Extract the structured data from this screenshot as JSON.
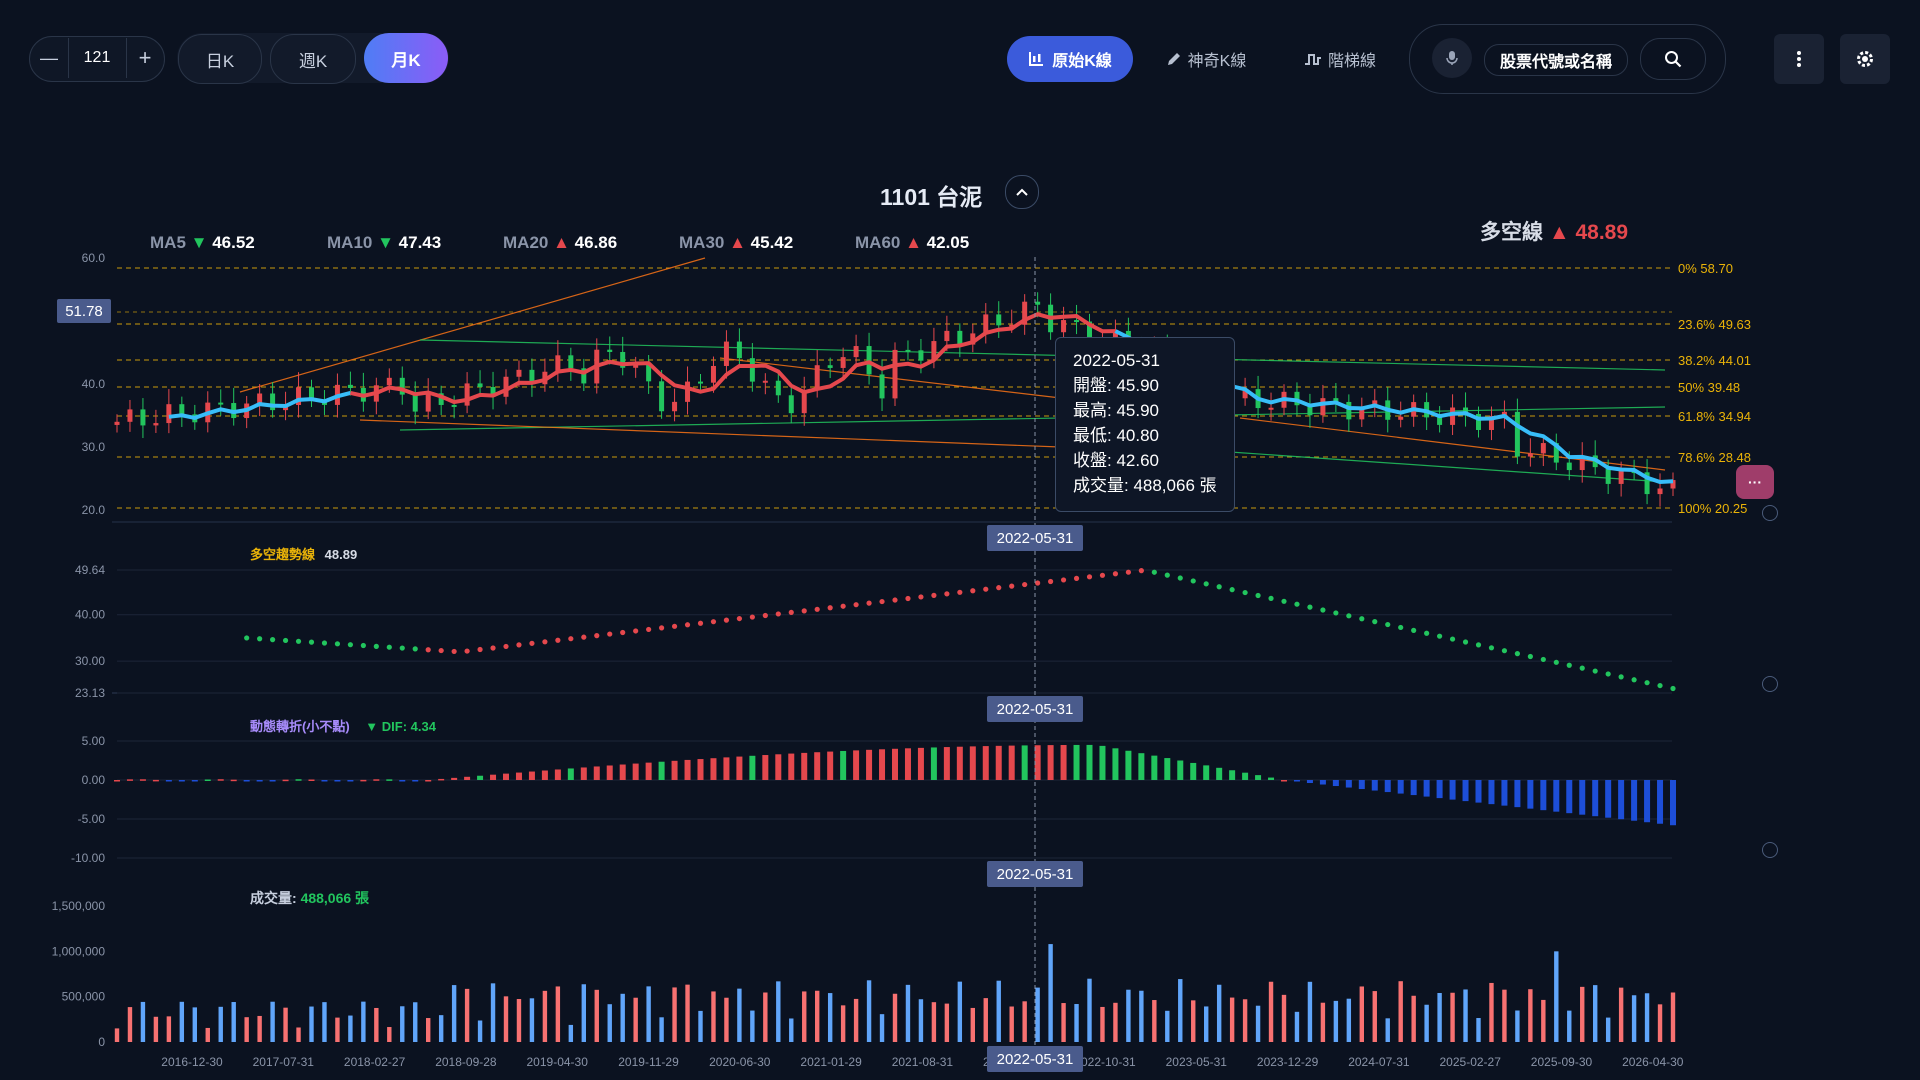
{
  "toolbar": {
    "count_value": "121",
    "minus_label": "—",
    "plus_label": "+",
    "period_tabs": [
      {
        "label": "日K",
        "active": false
      },
      {
        "label": "週K",
        "active": false
      },
      {
        "label": "月K",
        "active": true
      }
    ],
    "chart_modes": [
      {
        "label": "原始K線",
        "icon": "candlestick-chart-icon",
        "active": true
      },
      {
        "label": "神奇K線",
        "icon": "pencil-icon",
        "active": false
      },
      {
        "label": "階梯線",
        "icon": "step-line-icon",
        "active": false
      }
    ],
    "search_placeholder": "股票代號或名稱",
    "mic_icon": "microphone-icon",
    "search_icon": "search-icon",
    "more_icon": "more-vertical-icon",
    "settings_icon": "gear-icon"
  },
  "stock": {
    "title": "1101 台泥",
    "collapse_icon": "chevron-up-icon"
  },
  "ma": [
    {
      "label": "MA5",
      "dir": "down",
      "value": "46.52"
    },
    {
      "label": "MA10",
      "dir": "down",
      "value": "47.43"
    },
    {
      "label": "MA20",
      "dir": "up",
      "value": "46.86"
    },
    {
      "label": "MA30",
      "dir": "up",
      "value": "45.42"
    },
    {
      "label": "MA60",
      "dir": "up",
      "value": "42.05"
    }
  ],
  "bull_bear": {
    "label": "多空線",
    "arrow": "▲",
    "value": "48.89"
  },
  "price_axis": {
    "ticks": [
      "60.0",
      "40.0",
      "30.0",
      "20.0"
    ],
    "current_price": "51.78"
  },
  "fib_levels": [
    {
      "pct": "0%",
      "price": "58.70"
    },
    {
      "pct": "23.6%",
      "price": "49.63"
    },
    {
      "pct": "38.2%",
      "price": "44.01"
    },
    {
      "pct": "50%",
      "price": "39.48"
    },
    {
      "pct": "61.8%",
      "price": "34.94"
    },
    {
      "pct": "78.6%",
      "price": "28.48"
    },
    {
      "pct": "100%",
      "price": "20.25"
    }
  ],
  "tooltip": {
    "date": "2022-05-31",
    "open": "開盤: 45.90",
    "high": "最高: 45.90",
    "low": "最低: 40.80",
    "close": "收盤: 42.60",
    "volume": "成交量: 488,066 張"
  },
  "crosshair_date": "2022-05-31",
  "trend_panel": {
    "label": "多空趨勢線",
    "value": "48.89",
    "ticks": [
      "49.64",
      "40.00",
      "30.00",
      "23.13"
    ]
  },
  "momentum_panel": {
    "label": "動態轉折(小不點)",
    "dif": "▼ DIF: 4.34",
    "ticks": [
      "5.00",
      "0.00",
      "-5.00",
      "-10.00"
    ]
  },
  "volume_panel": {
    "label": "成交量:",
    "value": "488,066 張",
    "ticks": [
      "1,500,000",
      "1,000,000",
      "500,000",
      "0"
    ]
  },
  "x_axis_labels": [
    "2016-12-30",
    "2017-07-31",
    "2018-02-27",
    "2018-09-28",
    "2019-04-30",
    "2019-11-29",
    "2020-06-30",
    "2021-01-29",
    "2021-08-31",
    "2022-05-31",
    "2022-10-31",
    "2023-05-31",
    "2023-12-29",
    "2024-07-31",
    "2025-02-27",
    "2025-09-30",
    "2026-04-30"
  ],
  "colors": {
    "up": "#e5484d",
    "down": "#22c55e",
    "ma_line": "#38bdf8",
    "fib": "#eab308",
    "macd_neg": "#1d4ed8",
    "accent": "#5b6ef5"
  },
  "chart_data": {
    "type": "candlestick",
    "price_ylim": [
      20,
      60
    ],
    "series": [
      {
        "name": "多空線",
        "values": []
      }
    ]
  }
}
